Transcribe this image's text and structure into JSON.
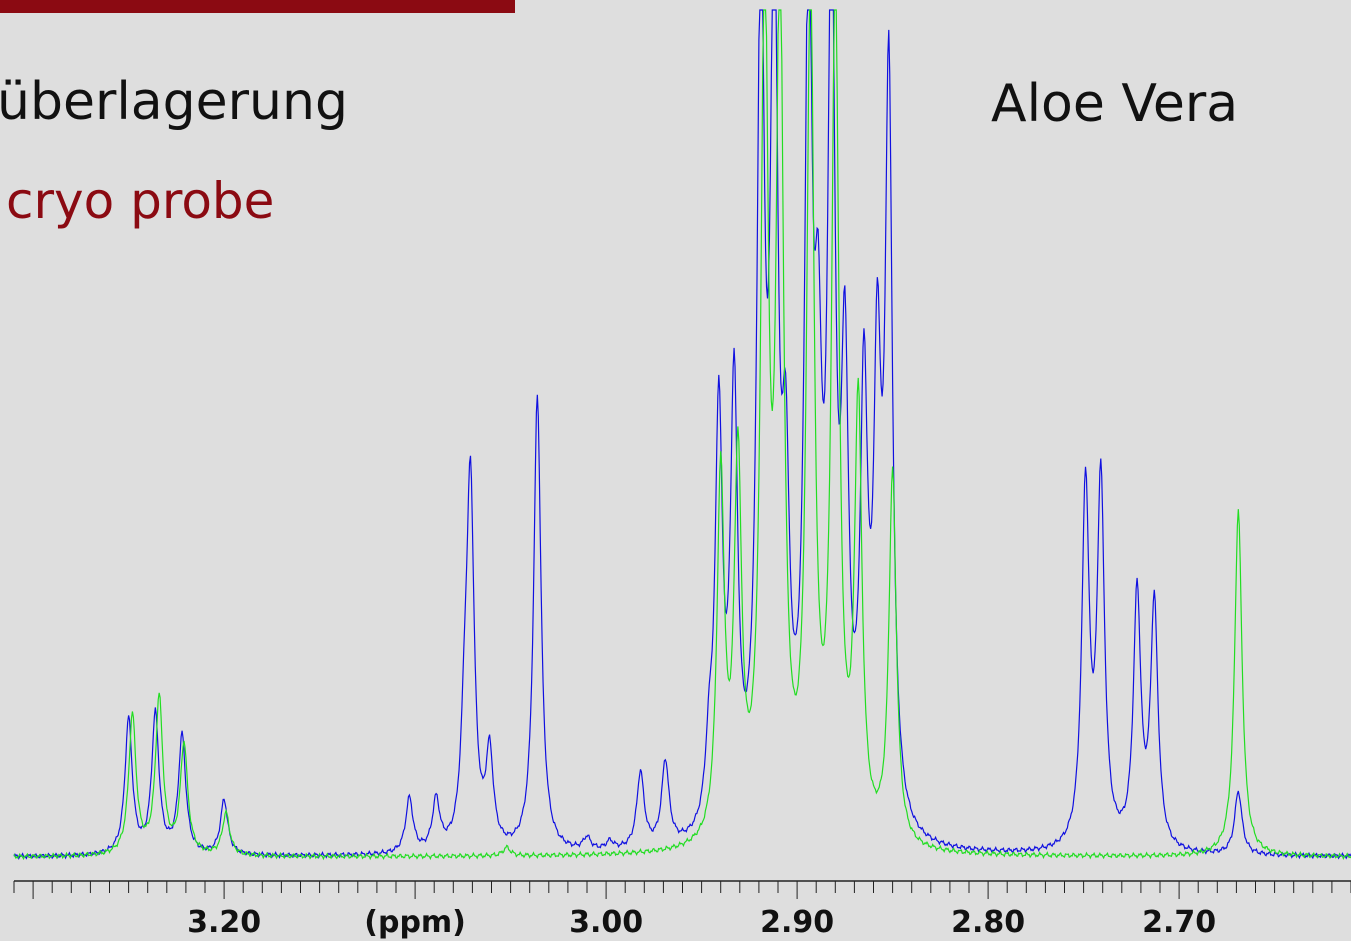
{
  "header": {
    "title_left": "überlagerung",
    "subtitle": "cryo probe",
    "title_right": "Aloe Vera"
  },
  "colors": {
    "accent_bar": "#8b0a12",
    "subtitle": "#8b0a12",
    "series_blue": "#1010e0",
    "series_green": "#22dd22",
    "background": "#dedede"
  },
  "chart_data": {
    "type": "line",
    "title": "",
    "xlabel": "(ppm)",
    "ylabel": "",
    "xlim": [
      3.31,
      2.61
    ],
    "ylim": [
      0,
      100
    ],
    "x_reversed": true,
    "grid": false,
    "tick_labels": [
      "3.20",
      "3.00",
      "2.90",
      "2.80",
      "2.70"
    ],
    "series": [
      {
        "color": "#1010e0",
        "peaks": [
          {
            "x": 3.25,
            "y": 16.0
          },
          {
            "x": 3.236,
            "y": 16.5
          },
          {
            "x": 3.222,
            "y": 14.0
          },
          {
            "x": 3.2,
            "y": 6.5
          },
          {
            "x": 3.103,
            "y": 6.5
          },
          {
            "x": 3.089,
            "y": 6.0
          },
          {
            "x": 3.074,
            "y": 11.5
          },
          {
            "x": 3.071,
            "y": 42.0
          },
          {
            "x": 3.061,
            "y": 11.0
          },
          {
            "x": 3.036,
            "y": 54.0
          },
          {
            "x": 3.01,
            "y": 1.5
          },
          {
            "x": 2.998,
            "y": 1.0
          },
          {
            "x": 2.982,
            "y": 9.0
          },
          {
            "x": 2.969,
            "y": 10.0
          },
          {
            "x": 2.946,
            "y": 8.0
          },
          {
            "x": 2.941,
            "y": 49.0
          },
          {
            "x": 2.933,
            "y": 51.0
          },
          {
            "x": 2.919,
            "y": 100.0
          },
          {
            "x": 2.912,
            "y": 100.0
          },
          {
            "x": 2.906,
            "y": 35.0
          },
          {
            "x": 2.894,
            "y": 100.0
          },
          {
            "x": 2.889,
            "y": 42.0
          },
          {
            "x": 2.882,
            "y": 100.0
          },
          {
            "x": 2.875,
            "y": 50.0
          },
          {
            "x": 2.865,
            "y": 49.0
          },
          {
            "x": 2.858,
            "y": 49.5
          },
          {
            "x": 2.852,
            "y": 87.5
          },
          {
            "x": 2.749,
            "y": 42.5
          },
          {
            "x": 2.741,
            "y": 43.0
          },
          {
            "x": 2.722,
            "y": 30.0
          },
          {
            "x": 2.713,
            "y": 29.0
          },
          {
            "x": 2.669,
            "y": 7.5
          }
        ]
      },
      {
        "color": "#22dd22",
        "peaks": [
          {
            "x": 3.248,
            "y": 16.5
          },
          {
            "x": 3.234,
            "y": 18.5
          },
          {
            "x": 3.221,
            "y": 13.0
          },
          {
            "x": 3.199,
            "y": 5.0
          },
          {
            "x": 3.052,
            "y": 1.0
          },
          {
            "x": 2.94,
            "y": 43.0
          },
          {
            "x": 2.931,
            "y": 44.0
          },
          {
            "x": 2.917,
            "y": 100.0
          },
          {
            "x": 2.909,
            "y": 100.0
          },
          {
            "x": 2.893,
            "y": 100.0
          },
          {
            "x": 2.88,
            "y": 100.0
          },
          {
            "x": 2.868,
            "y": 51.0
          },
          {
            "x": 2.85,
            "y": 44.0
          },
          {
            "x": 2.669,
            "y": 41.0
          }
        ]
      }
    ]
  }
}
